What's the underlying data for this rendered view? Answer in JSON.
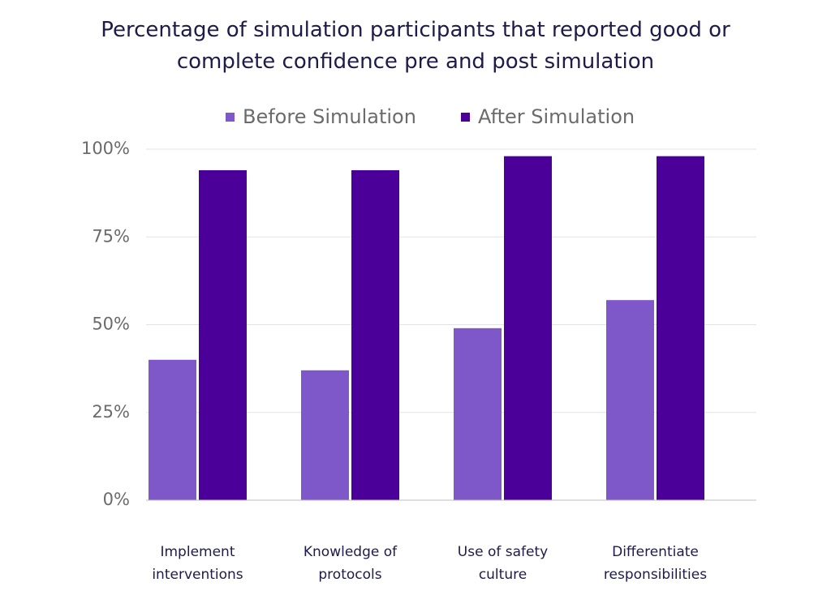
{
  "chart_data": {
    "type": "bar",
    "title_lines": [
      "Percentage of simulation participants that reported good or",
      "complete confidence pre and post simulation"
    ],
    "categories": [
      [
        "Implement",
        "interventions"
      ],
      [
        "Knowledge of",
        "protocols"
      ],
      [
        "Use of safety",
        "culture"
      ],
      [
        "Differentiate",
        "responsibilities"
      ]
    ],
    "series": [
      {
        "name": "Before Simulation",
        "color": "#7e57c9",
        "values": [
          40,
          37,
          49,
          57
        ]
      },
      {
        "name": "After Simulation",
        "color": "#4a0099",
        "values": [
          94,
          94,
          98,
          98
        ]
      }
    ],
    "ylim": [
      0,
      100
    ],
    "yticks": [
      0,
      25,
      50,
      75,
      100
    ],
    "ytick_labels": [
      "0%",
      "25%",
      "50%",
      "75%",
      "100%"
    ],
    "legend_position": "top-center",
    "grid": true,
    "xlabel": "",
    "ylabel": ""
  }
}
